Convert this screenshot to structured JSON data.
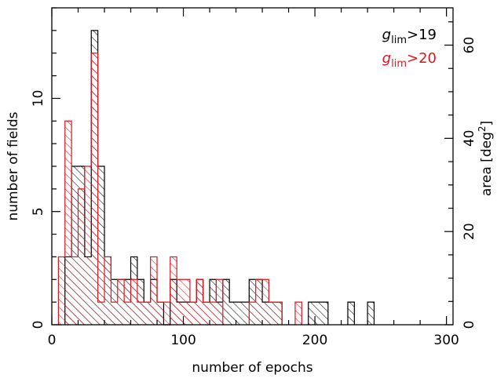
{
  "chart_data": {
    "type": "histogram",
    "xlabel": "number of epochs",
    "ylabel": "number of fields",
    "y2label_prefix": "area ",
    "y2label_unit": "[deg",
    "y2label_sup": "2",
    "y2label_close": "]",
    "xlim": [
      0,
      305
    ],
    "ylim": [
      0,
      14
    ],
    "y2lim": [
      0,
      68
    ],
    "x_ticks": [
      0,
      100,
      200,
      300
    ],
    "y_ticks": [
      0,
      5,
      10
    ],
    "y2_ticks": [
      0,
      20,
      40,
      60
    ],
    "x_ticks_labels": [
      "0",
      "100",
      "200",
      "300"
    ],
    "y_ticks_labels": [
      "0",
      "5",
      "10"
    ],
    "y2_ticks_labels": [
      "0",
      "20",
      "40",
      "60"
    ],
    "bin_width": 5,
    "grid": false,
    "legend_position": "top-right",
    "series": [
      {
        "legend_main": "g",
        "legend_sub": "lim",
        "legend_rest": ">19",
        "color": "#000000",
        "bins": [
          {
            "x0": 10,
            "x1": 15,
            "y": 3
          },
          {
            "x0": 15,
            "x1": 25,
            "y": 7
          },
          {
            "x0": 25,
            "x1": 30,
            "y": 3
          },
          {
            "x0": 30,
            "x1": 35,
            "y": 13
          },
          {
            "x0": 35,
            "x1": 40,
            "y": 7
          },
          {
            "x0": 40,
            "x1": 45,
            "y": 3
          },
          {
            "x0": 45,
            "x1": 55,
            "y": 2
          },
          {
            "x0": 55,
            "x1": 60,
            "y": 2
          },
          {
            "x0": 60,
            "x1": 65,
            "y": 3
          },
          {
            "x0": 65,
            "x1": 70,
            "y": 2
          },
          {
            "x0": 70,
            "x1": 75,
            "y": 1
          },
          {
            "x0": 75,
            "x1": 80,
            "y": 2
          },
          {
            "x0": 80,
            "x1": 85,
            "y": 1
          },
          {
            "x0": 85,
            "x1": 90,
            "y": 0
          },
          {
            "x0": 90,
            "x1": 95,
            "y": 2
          },
          {
            "x0": 95,
            "x1": 100,
            "y": 1
          },
          {
            "x0": 100,
            "x1": 105,
            "y": 1
          },
          {
            "x0": 105,
            "x1": 110,
            "y": 1
          },
          {
            "x0": 110,
            "x1": 115,
            "y": 2
          },
          {
            "x0": 115,
            "x1": 120,
            "y": 1
          },
          {
            "x0": 120,
            "x1": 125,
            "y": 2
          },
          {
            "x0": 125,
            "x1": 130,
            "y": 1
          },
          {
            "x0": 130,
            "x1": 135,
            "y": 2
          },
          {
            "x0": 135,
            "x1": 150,
            "y": 1
          },
          {
            "x0": 150,
            "x1": 160,
            "y": 2
          },
          {
            "x0": 160,
            "x1": 165,
            "y": 1
          },
          {
            "x0": 165,
            "x1": 175,
            "y": 1
          },
          {
            "x0": 195,
            "x1": 210,
            "y": 1
          },
          {
            "x0": 225,
            "x1": 230,
            "y": 1
          },
          {
            "x0": 240,
            "x1": 245,
            "y": 1
          }
        ]
      },
      {
        "legend_main": "g",
        "legend_sub": "lim",
        "legend_rest": ">20",
        "color": "#e0141e",
        "bins": [
          {
            "x0": 5,
            "x1": 10,
            "y": 3
          },
          {
            "x0": 10,
            "x1": 15,
            "y": 9
          },
          {
            "x0": 15,
            "x1": 20,
            "y": 3
          },
          {
            "x0": 20,
            "x1": 25,
            "y": 6
          },
          {
            "x0": 25,
            "x1": 30,
            "y": 7
          },
          {
            "x0": 30,
            "x1": 35,
            "y": 12
          },
          {
            "x0": 35,
            "x1": 40,
            "y": 1
          },
          {
            "x0": 40,
            "x1": 45,
            "y": 3
          },
          {
            "x0": 45,
            "x1": 50,
            "y": 1
          },
          {
            "x0": 50,
            "x1": 55,
            "y": 2
          },
          {
            "x0": 55,
            "x1": 60,
            "y": 1
          },
          {
            "x0": 60,
            "x1": 65,
            "y": 2
          },
          {
            "x0": 65,
            "x1": 70,
            "y": 1
          },
          {
            "x0": 70,
            "x1": 75,
            "y": 1
          },
          {
            "x0": 75,
            "x1": 80,
            "y": 3
          },
          {
            "x0": 80,
            "x1": 85,
            "y": 1
          },
          {
            "x0": 85,
            "x1": 90,
            "y": 1
          },
          {
            "x0": 90,
            "x1": 95,
            "y": 3
          },
          {
            "x0": 95,
            "x1": 100,
            "y": 2
          },
          {
            "x0": 100,
            "x1": 105,
            "y": 2
          },
          {
            "x0": 105,
            "x1": 110,
            "y": 1
          },
          {
            "x0": 110,
            "x1": 115,
            "y": 2
          },
          {
            "x0": 115,
            "x1": 120,
            "y": 1
          },
          {
            "x0": 120,
            "x1": 125,
            "y": 1
          },
          {
            "x0": 125,
            "x1": 130,
            "y": 2
          },
          {
            "x0": 150,
            "x1": 155,
            "y": 1
          },
          {
            "x0": 155,
            "x1": 165,
            "y": 2
          },
          {
            "x0": 165,
            "x1": 170,
            "y": 1
          },
          {
            "x0": 170,
            "x1": 175,
            "y": 1
          },
          {
            "x0": 185,
            "x1": 190,
            "y": 1
          }
        ]
      }
    ]
  }
}
